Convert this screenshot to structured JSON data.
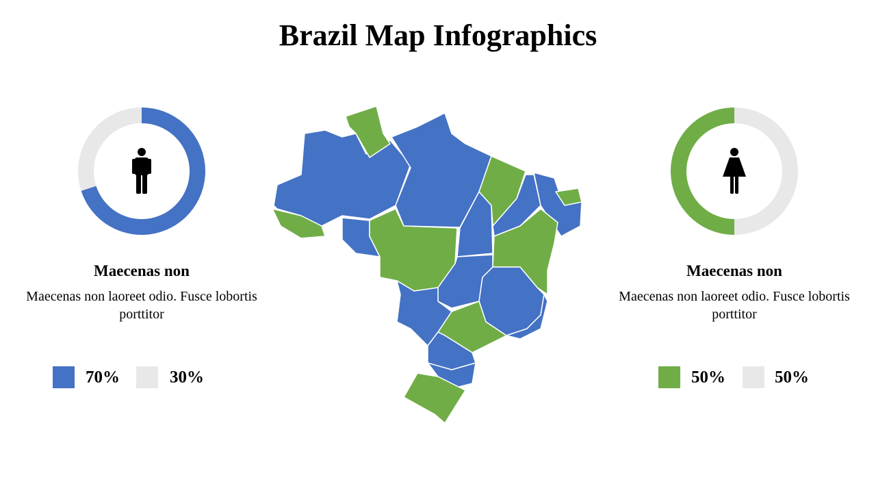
{
  "title": "Brazil Map Infographics",
  "chart_data": [
    {
      "type": "donut",
      "heading": "Maecenas non",
      "text": "Maecenas non laoreet odio. Fusce lobortis porttitor",
      "values": [
        70,
        30
      ],
      "value_labels": [
        "70%",
        "30%"
      ],
      "colors": [
        "#4472c4",
        "#e8e8e8"
      ],
      "direction": "clockwise"
    },
    {
      "type": "donut",
      "heading": "Maecenas non",
      "text": "Maecenas non laoreet odio. Fusce lobortis porttitor",
      "values": [
        50,
        50
      ],
      "value_labels": [
        "50%",
        "50%"
      ],
      "colors": [
        "#70ad47",
        "#e8e8e8"
      ],
      "direction": "counterclockwise"
    }
  ]
}
